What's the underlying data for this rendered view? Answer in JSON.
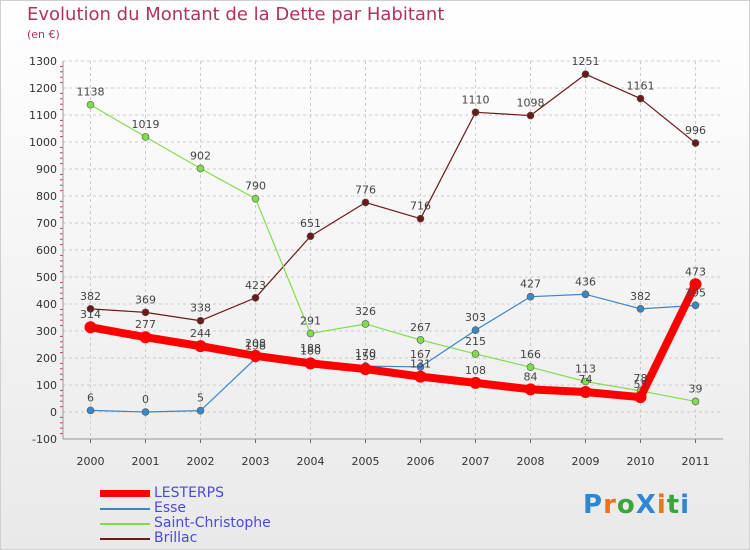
{
  "header": {
    "title": "Evolution du Montant de la Dette par Habitant",
    "unit": "(en €)"
  },
  "logo_text": "ProXiti",
  "chart_data": {
    "type": "line",
    "title": "Evolution du Montant de la Dette par Habitant",
    "ylabel": "(en €)",
    "xlabel": "",
    "x": [
      2000,
      2001,
      2002,
      2003,
      2004,
      2005,
      2006,
      2007,
      2008,
      2009,
      2010,
      2011
    ],
    "ylim": [
      -100,
      1300
    ],
    "yticks": [
      -100,
      0,
      100,
      200,
      300,
      400,
      500,
      600,
      700,
      800,
      900,
      1000,
      1100,
      1200,
      1300
    ],
    "grid": true,
    "legend_position": "bottom-left",
    "series": [
      {
        "name": "LESTERPS",
        "color": "#ff0000",
        "values": [
          314,
          277,
          244,
          208,
          180,
          159,
          131,
          108,
          84,
          74,
          55,
          473
        ]
      },
      {
        "name": "Esse",
        "color": "#3d86c6",
        "values": [
          6,
          0,
          5,
          198,
          188,
          170,
          167,
          303,
          427,
          436,
          382,
          395
        ]
      },
      {
        "name": "Saint-Christophe",
        "color": "#7fdd4c",
        "values": [
          1138,
          1019,
          902,
          790,
          291,
          326,
          267,
          215,
          166,
          113,
          78,
          39
        ]
      },
      {
        "name": "Brillac",
        "color": "#6b1a1a",
        "values": [
          382,
          369,
          338,
          423,
          651,
          776,
          716,
          1110,
          1098,
          1251,
          1161,
          996
        ]
      }
    ],
    "data_labels": [
      {
        "series": "LESTERPS",
        "labels": [
          "314",
          "277",
          "244",
          "208",
          "180",
          "159",
          "131",
          "108",
          "84",
          "74",
          "55",
          "473"
        ]
      },
      {
        "series": "Esse",
        "labels": [
          "6",
          "0",
          "5",
          "198",
          "188",
          "170",
          "167",
          "303",
          "427",
          "436",
          "382",
          "395"
        ]
      },
      {
        "series": "Saint-Christophe",
        "labels": [
          "1138",
          "1019",
          "902",
          "790",
          "291",
          "326",
          "267",
          "215",
          "166",
          "113",
          "78",
          "39"
        ]
      },
      {
        "series": "Brillac",
        "labels": [
          "382",
          "369",
          "338",
          "423",
          "651",
          "776",
          "716",
          "1110",
          "1098",
          "1251",
          "1161",
          "996"
        ]
      }
    ]
  }
}
